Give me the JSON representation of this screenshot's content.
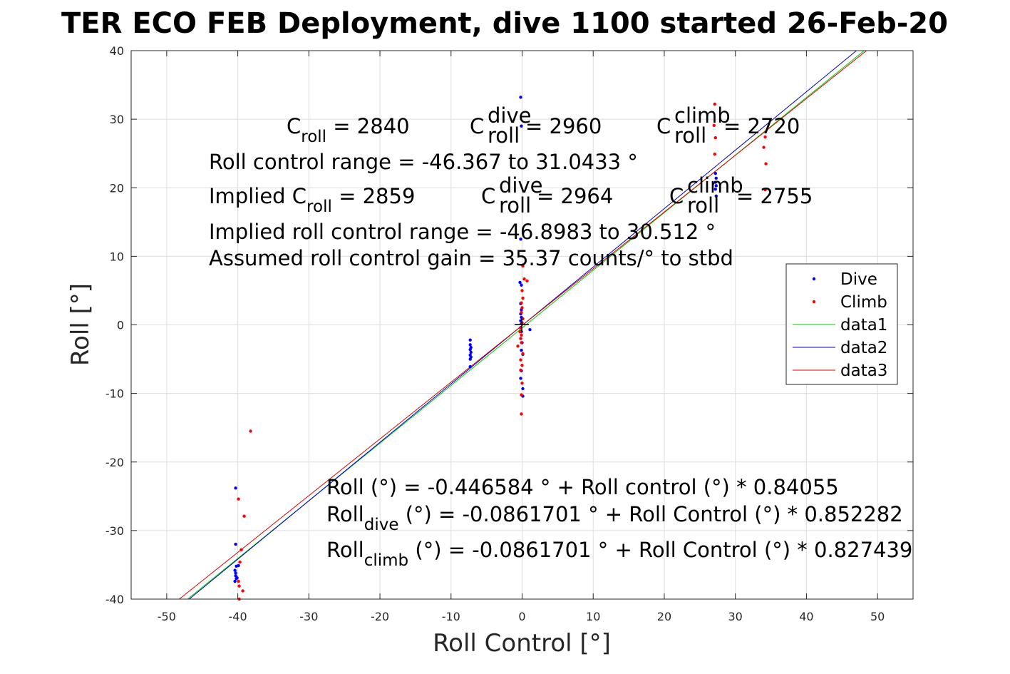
{
  "chart_data": {
    "type": "scatter",
    "title": "TER ECO FEB Deployment, dive 1100 started 26-Feb-20",
    "xlabel": "Roll Control [°]",
    "ylabel": "Roll [°]",
    "xlim": [
      -55,
      55
    ],
    "ylim": [
      -40,
      40
    ],
    "xticks": [
      -50,
      -40,
      -30,
      -20,
      -10,
      0,
      10,
      20,
      30,
      40,
      50
    ],
    "yticks": [
      -40,
      -30,
      -20,
      -10,
      0,
      10,
      20,
      30,
      40
    ],
    "grid": true,
    "legend_position": "right",
    "series": [
      {
        "name": "Dive",
        "kind": "points",
        "color": "#0000ff",
        "points": [
          [
            -40.3,
            -23.8
          ],
          [
            -40.3,
            -32.0
          ],
          [
            -40.2,
            -35.2
          ],
          [
            -40.4,
            -35.8
          ],
          [
            -40.3,
            -36.2
          ],
          [
            -40.3,
            -36.6
          ],
          [
            -40.2,
            -37.0
          ],
          [
            -40.4,
            -37.4
          ],
          [
            -39.9,
            -35.1
          ],
          [
            -40.1,
            -36.9
          ],
          [
            -7.3,
            -2.2
          ],
          [
            -7.3,
            -2.9
          ],
          [
            -7.2,
            -3.3
          ],
          [
            -7.3,
            -3.6
          ],
          [
            -7.2,
            -4.0
          ],
          [
            -7.3,
            -4.4
          ],
          [
            -7.2,
            -4.7
          ],
          [
            -7.3,
            -5.0
          ],
          [
            -7.3,
            -6.1
          ],
          [
            -0.2,
            33.2
          ],
          [
            -0.1,
            29.0
          ],
          [
            -0.2,
            12.5
          ],
          [
            -0.3,
            6.2
          ],
          [
            -0.1,
            5.8
          ],
          [
            -0.2,
            3.1
          ],
          [
            -0.1,
            2.2
          ],
          [
            -0.2,
            1.6
          ],
          [
            -0.1,
            1.1
          ],
          [
            -0.2,
            0.6
          ],
          [
            -0.1,
            0.2
          ],
          [
            -0.2,
            -0.4
          ],
          [
            -0.1,
            -1.0
          ],
          [
            0.0,
            -2.6
          ],
          [
            -0.1,
            -3.7
          ],
          [
            0.1,
            -4.3
          ],
          [
            -0.1,
            -6.7
          ],
          [
            -0.2,
            -7.8
          ],
          [
            0.1,
            -9.3
          ],
          [
            0.1,
            -10.4
          ],
          [
            1.1,
            -0.7
          ],
          [
            27.2,
            22.1
          ],
          [
            27.3,
            21.4
          ],
          [
            27.2,
            20.8
          ],
          [
            27.3,
            20.3
          ],
          [
            27.2,
            19.8
          ],
          [
            27.3,
            18.8
          ]
        ]
      },
      {
        "name": "Climb",
        "kind": "points",
        "color": "#ff0000",
        "points": [
          [
            -38.2,
            -15.5
          ],
          [
            -39.9,
            -25.4
          ],
          [
            -39.1,
            -27.9
          ],
          [
            -39.5,
            -32.8
          ],
          [
            -39.7,
            -34.6
          ],
          [
            -39.9,
            -37.4
          ],
          [
            -39.8,
            -38.1
          ],
          [
            -39.3,
            -38.8
          ],
          [
            -39.8,
            -40.0
          ],
          [
            0.1,
            8.6
          ],
          [
            0.3,
            6.7
          ],
          [
            0.7,
            6.4
          ],
          [
            0.0,
            5.0
          ],
          [
            0.1,
            3.9
          ],
          [
            -0.1,
            3.2
          ],
          [
            0.0,
            2.5
          ],
          [
            -0.1,
            1.8
          ],
          [
            0.1,
            0.9
          ],
          [
            0.0,
            0.3
          ],
          [
            -0.2,
            -0.5
          ],
          [
            -0.3,
            -1.0
          ],
          [
            -0.1,
            -1.5
          ],
          [
            -0.2,
            -2.0
          ],
          [
            -0.1,
            -2.6
          ],
          [
            -0.6,
            -3.1
          ],
          [
            0.1,
            -4.2
          ],
          [
            -0.2,
            -5.1
          ],
          [
            0.0,
            -5.9
          ],
          [
            -0.2,
            -6.6
          ],
          [
            0.0,
            -8.5
          ],
          [
            -0.1,
            -10.2
          ],
          [
            -0.1,
            -13.0
          ],
          [
            27.1,
            32.2
          ],
          [
            27.0,
            29.1
          ],
          [
            27.2,
            27.3
          ],
          [
            27.1,
            24.9
          ],
          [
            34.2,
            27.4
          ],
          [
            34.0,
            25.9
          ],
          [
            34.3,
            23.5
          ],
          [
            34.2,
            19.7
          ]
        ]
      },
      {
        "name": "data1",
        "kind": "line",
        "color": "#00cc00",
        "intercept": -0.446584,
        "slope": 0.84055
      },
      {
        "name": "data2",
        "kind": "line",
        "color": "#0000cc",
        "intercept": -0.0861701,
        "slope": 0.852282
      },
      {
        "name": "data3",
        "kind": "line",
        "color": "#e00000",
        "intercept": -0.0861701,
        "slope": 0.827439
      }
    ],
    "annotations": {
      "c_roll": {
        "label": "C",
        "sub": "roll",
        "text": " = 2840"
      },
      "c_roll_dive": {
        "label": "C",
        "sub": "roll",
        "sup": "dive",
        "text": " = 2960"
      },
      "c_roll_climb": {
        "label": "C",
        "sub": "roll",
        "sup": "climb",
        "text": " = 2720"
      },
      "range": "Roll control range = -46.367 to 31.0433 °",
      "implied_c_roll": {
        "label": "Implied C",
        "sub": "roll",
        "text": " = 2859"
      },
      "implied_c_dive": {
        "label": "C",
        "sub": "roll",
        "sup": "dive",
        "text": " = 2964"
      },
      "implied_c_climb": {
        "label": "C",
        "sub": "roll",
        "sup": "climb",
        "text": " = 2755"
      },
      "implied_range": "Implied roll control range = -46.8983 to 30.512 °",
      "gain": "Assumed roll control gain = 35.37 counts/° to stbd",
      "fit_all": "Roll (°) = -0.446584 ° + Roll control (°) * 0.84055",
      "fit_dive": {
        "label": "Roll",
        "sub": "dive",
        "text": " (°) = -0.0861701 ° + Roll Control (°) * 0.852282"
      },
      "fit_climb": {
        "label": "Roll",
        "sub": "climb",
        "text": " (°) = -0.0861701 ° + Roll Control (°) * 0.827439"
      }
    }
  }
}
